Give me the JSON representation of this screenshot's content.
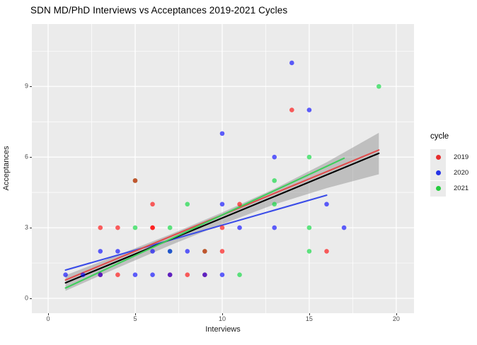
{
  "title": "SDN MD/PhD Interviews vs Acceptances 2019-2021 Cycles",
  "axes": {
    "x_label": "Interviews",
    "y_label": "Acceptances",
    "x_major_ticks": [
      0,
      5,
      10,
      15,
      20
    ],
    "x_minor_ticks": [
      2.5,
      7.5,
      12.5,
      17.5
    ],
    "y_major_ticks": [
      0,
      3,
      6,
      9
    ],
    "y_minor_ticks": [
      1.5,
      4.5,
      7.5,
      10.5
    ]
  },
  "legend": {
    "title": "cycle",
    "items": [
      {
        "label": "2019",
        "dot_color": "#e62e2e"
      },
      {
        "label": "2020",
        "dot_color": "#2633e6"
      },
      {
        "label": "2021",
        "dot_color": "#26cc3f"
      }
    ]
  },
  "colors": {
    "panel_background": "#ebebeb",
    "grid": "#ffffff",
    "band": "rgba(125,125,125,0.40)",
    "tick_text": "#4d4d4d",
    "point_colors": {
      "2019": "#ff0000",
      "2020": "#0000ff",
      "2021": "#00d936"
    },
    "point_opacity": 0.62,
    "line_colors": {
      "overall": "#000000",
      "2019": "#e04c4c",
      "2020": "#3a4ce8",
      "2021": "#3ecf5a"
    }
  },
  "chart_data": {
    "type": "scatter",
    "title": "SDN MD/PhD Interviews vs Acceptances 2019-2021 Cycles",
    "xlabel": "Interviews",
    "ylabel": "Acceptances",
    "xlim": [
      -0.935,
      21.02
    ],
    "ylim": [
      -0.63,
      11.65
    ],
    "grid": true,
    "legend_position": "right",
    "series": [
      {
        "name": "2021",
        "color_key": "2021",
        "points": [
          [
            11,
            1
          ],
          [
            7,
            2
          ],
          [
            9,
            2
          ],
          [
            15,
            2
          ],
          [
            5,
            3
          ],
          [
            7,
            3
          ],
          [
            15,
            3
          ],
          [
            8,
            4
          ],
          [
            13,
            4
          ],
          [
            5,
            5
          ],
          [
            13,
            5
          ],
          [
            15,
            6
          ],
          [
            19,
            9
          ]
        ]
      },
      {
        "name": "2019",
        "color_key": "2019",
        "points": [
          [
            3,
            1
          ],
          [
            4,
            1
          ],
          [
            7,
            1
          ],
          [
            8,
            1
          ],
          [
            9,
            1
          ],
          [
            9,
            2
          ],
          [
            10,
            2
          ],
          [
            16,
            2
          ],
          [
            3,
            3
          ],
          [
            4,
            3
          ],
          [
            6,
            3
          ],
          [
            6,
            3
          ],
          [
            10,
            3
          ],
          [
            6,
            4
          ],
          [
            11,
            4
          ],
          [
            5,
            5
          ],
          [
            14,
            8
          ]
        ]
      },
      {
        "name": "2020",
        "color_key": "2020",
        "points": [
          [
            1,
            1
          ],
          [
            2,
            1
          ],
          [
            3,
            1
          ],
          [
            5,
            1
          ],
          [
            6,
            1
          ],
          [
            7,
            1
          ],
          [
            9,
            1
          ],
          [
            10,
            1
          ],
          [
            3,
            2
          ],
          [
            4,
            2
          ],
          [
            6,
            2
          ],
          [
            7,
            2
          ],
          [
            8,
            2
          ],
          [
            11,
            3
          ],
          [
            13,
            3
          ],
          [
            17,
            3
          ],
          [
            10,
            4
          ],
          [
            16,
            4
          ],
          [
            13,
            6
          ],
          [
            10,
            7
          ],
          [
            15,
            8
          ],
          [
            14,
            10
          ]
        ]
      }
    ],
    "smooth_lines": [
      {
        "name": "2020",
        "color_key": "2020",
        "x": [
          1,
          16
        ],
        "y": [
          1.2,
          4.38
        ]
      },
      {
        "name": "2019",
        "color_key": "2019",
        "x": [
          1,
          19
        ],
        "y": [
          0.78,
          6.3
        ]
      },
      {
        "name": "overall",
        "color_key": "overall",
        "x": [
          1,
          19
        ],
        "y": [
          0.66,
          6.16
        ]
      },
      {
        "name": "2021",
        "color_key": "2021",
        "x": [
          1,
          17
        ],
        "y": [
          0.44,
          5.95
        ]
      }
    ],
    "ci_band": {
      "upper": [
        [
          1,
          0.98
        ],
        [
          4,
          1.84
        ],
        [
          7,
          2.71
        ],
        [
          10,
          3.65
        ],
        [
          13,
          4.65
        ],
        [
          16,
          5.78
        ],
        [
          19,
          7.03
        ]
      ],
      "lower": [
        [
          1,
          0.32
        ],
        [
          4,
          1.3
        ],
        [
          7,
          2.25
        ],
        [
          10,
          3.15
        ],
        [
          13,
          3.99
        ],
        [
          16,
          4.68
        ],
        [
          19,
          5.27
        ]
      ]
    }
  }
}
